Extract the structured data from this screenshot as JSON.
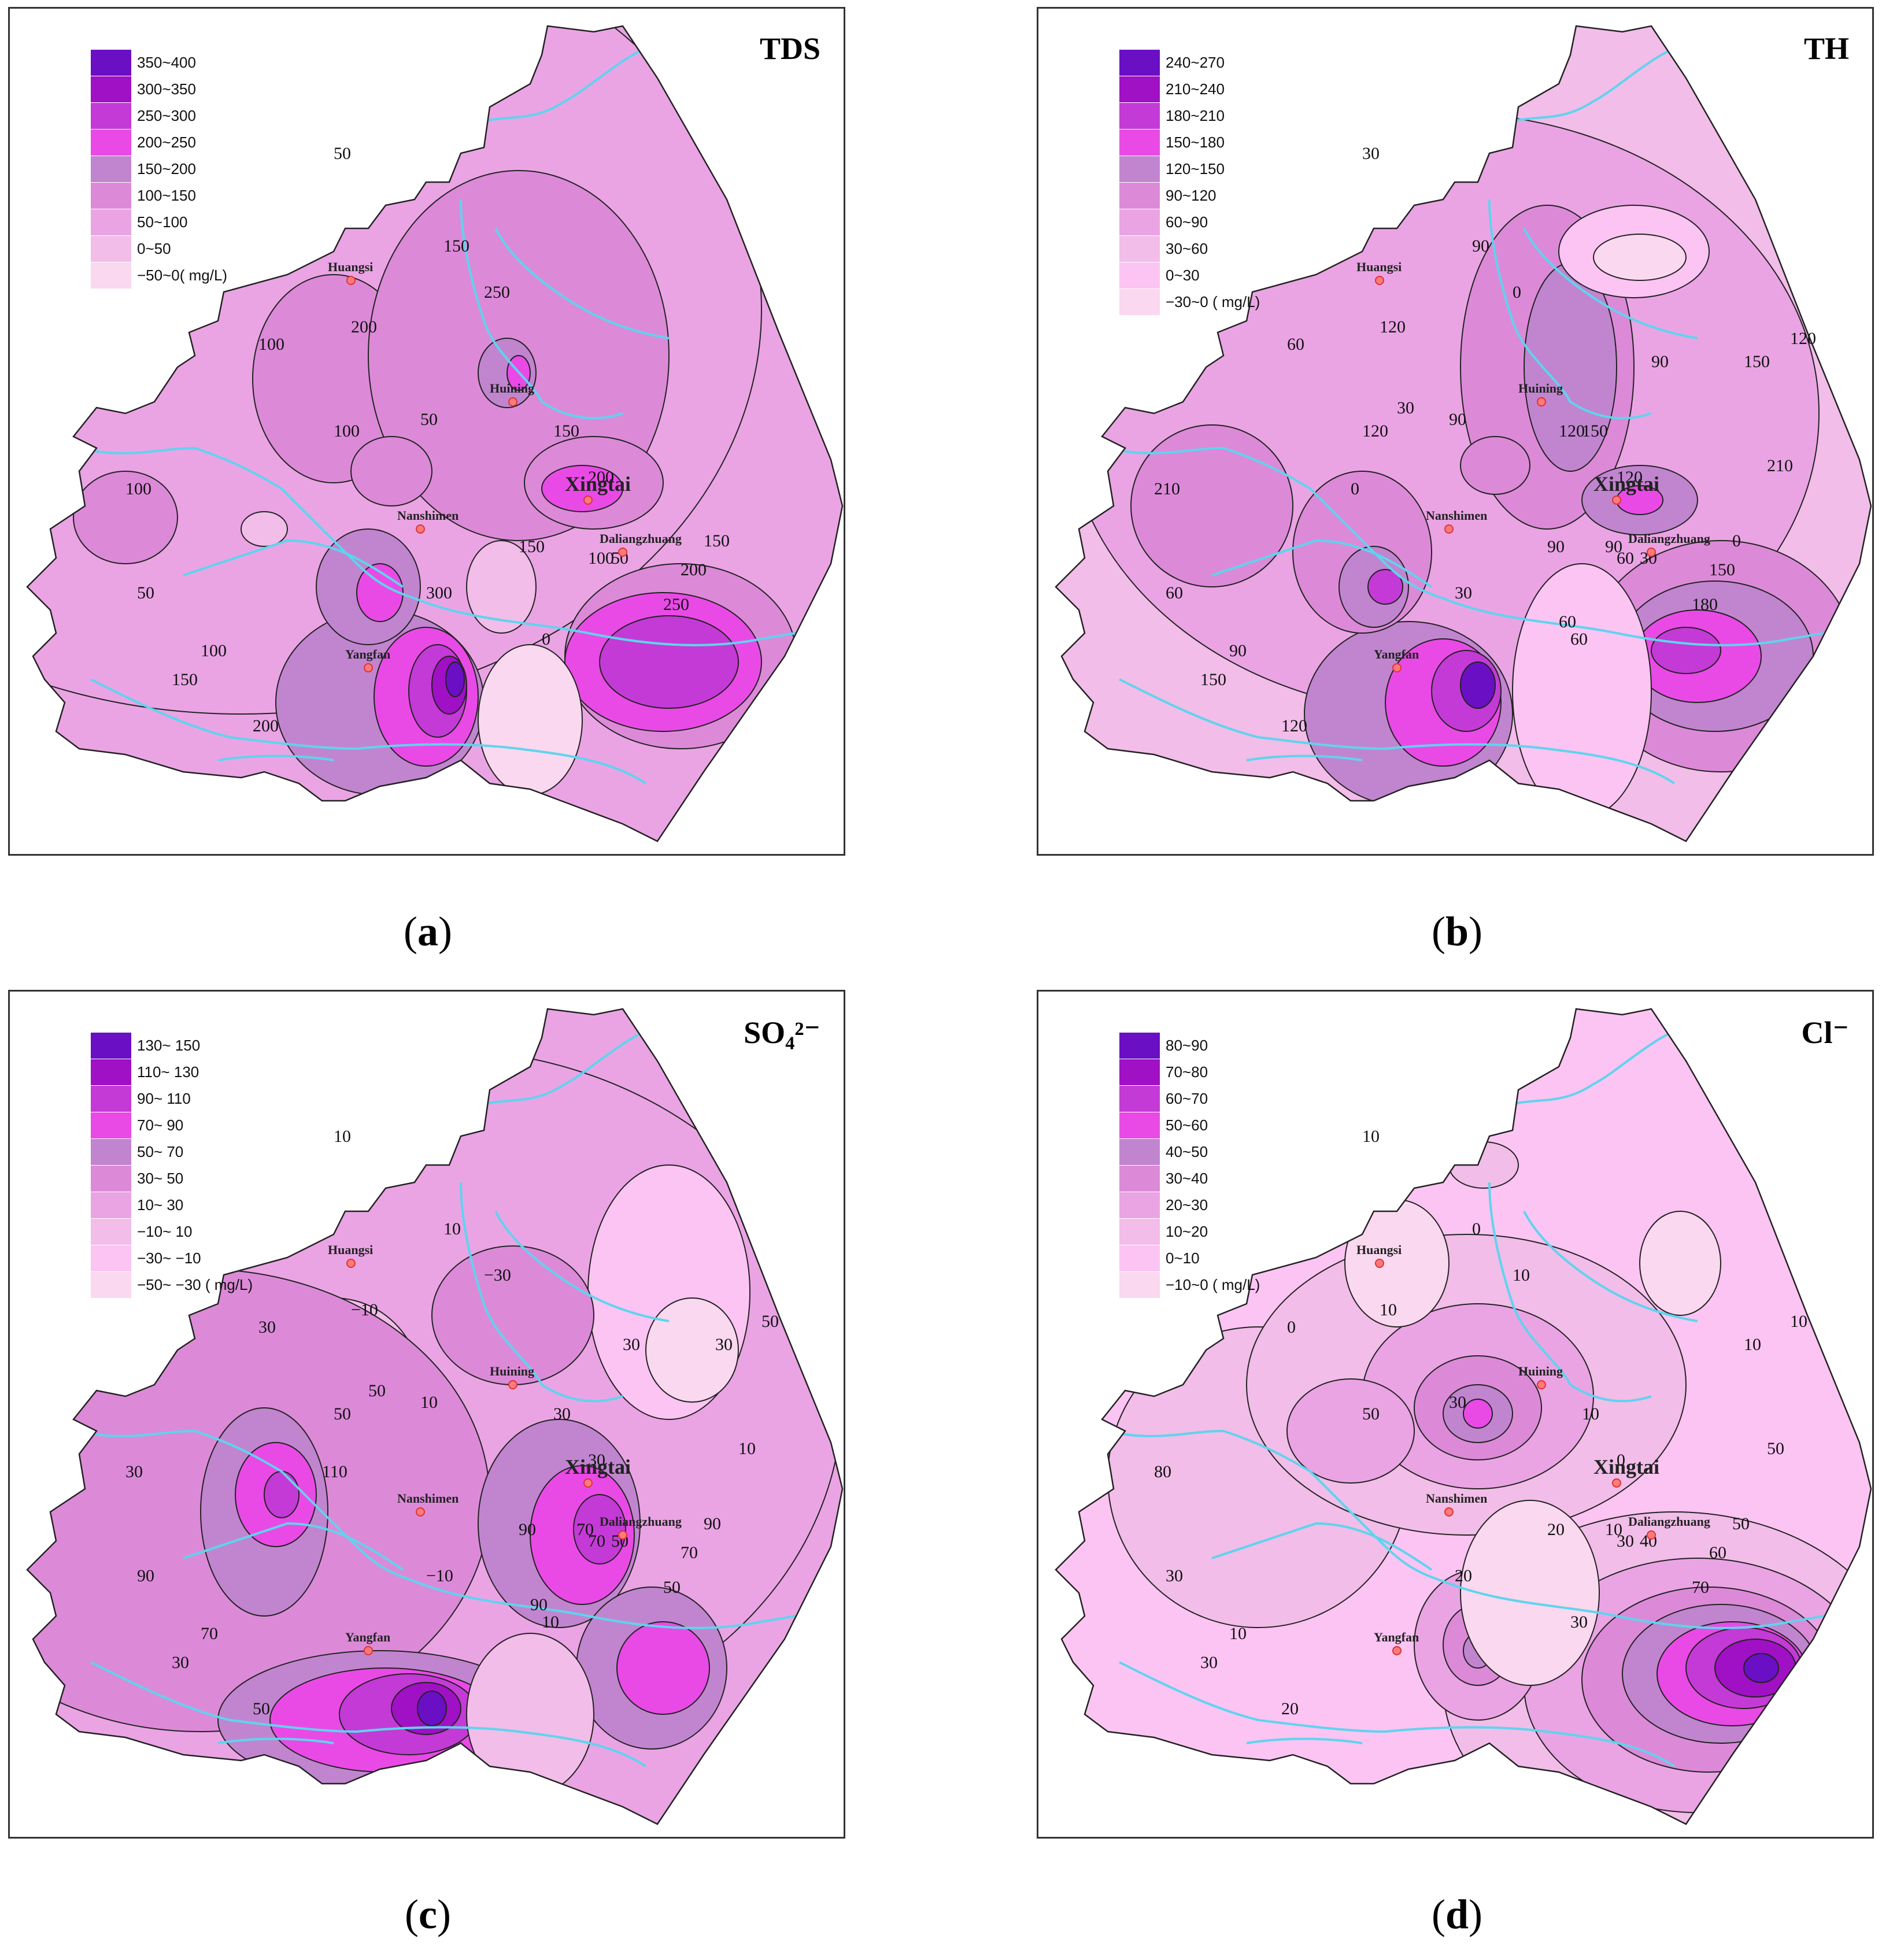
{
  "colors": {
    "river": "#5ed4ee",
    "contour": "#222222",
    "city_dot": "#ff7a7a"
  },
  "panels": [
    {
      "id": "a",
      "title": "TDS",
      "caption_letter": "a",
      "legend": [
        {
          "label": "350~400",
          "color": "#6a0fc4"
        },
        {
          "label": "300~350",
          "color": "#a010c4"
        },
        {
          "label": "250~300",
          "color": "#c43ad6"
        },
        {
          "label": "200~250",
          "color": "#e94ae6"
        },
        {
          "label": "150~200",
          "color": "#c185cf"
        },
        {
          "label": "100~150",
          "color": "#dc8ad8"
        },
        {
          "label": "50~100",
          "color": "#eaa4e4"
        },
        {
          "label": "0~50",
          "color": "#f2bde8"
        },
        {
          "label": "−50~0( mg/L)",
          "color": "#fad8ef"
        }
      ],
      "contour_labels": [
        "50",
        "100",
        "150",
        "200",
        "250",
        "300",
        "0",
        "50",
        "100",
        "150",
        "200",
        "150",
        "100",
        "50",
        "150",
        "200",
        "250",
        "100",
        "150",
        "200",
        "100",
        "50"
      ],
      "base_color": "#eaa4e4"
    },
    {
      "id": "b",
      "title": "TH",
      "caption_letter": "b",
      "legend": [
        {
          "label": "240~270",
          "color": "#6a0fc4"
        },
        {
          "label": "210~240",
          "color": "#a010c4"
        },
        {
          "label": "180~210",
          "color": "#c43ad6"
        },
        {
          "label": "150~180",
          "color": "#e94ae6"
        },
        {
          "label": "120~150",
          "color": "#c185cf"
        },
        {
          "label": "90~120",
          "color": "#dc8ad8"
        },
        {
          "label": "60~90",
          "color": "#eaa4e4"
        },
        {
          "label": "30~60",
          "color": "#f2bde8"
        },
        {
          "label": "0~30",
          "color": "#fcc4f3"
        },
        {
          "label": "−30~0 ( mg/L)",
          "color": "#fad8ef"
        }
      ],
      "contour_labels": [
        "30",
        "60",
        "90",
        "120",
        "0",
        "30",
        "60",
        "90",
        "120",
        "150",
        "120",
        "90",
        "60",
        "30",
        "0",
        "150",
        "180",
        "210",
        "150",
        "120",
        "90",
        "60",
        "210",
        "150",
        "120",
        "90",
        "60",
        "0",
        "30",
        "90",
        "120"
      ],
      "base_color": "#f2bde8"
    },
    {
      "id": "c",
      "title": "SO₄²⁻",
      "caption_letter": "c",
      "legend": [
        {
          "label": "130~ 150",
          "color": "#6a0fc4"
        },
        {
          "label": "110~ 130",
          "color": "#a010c4"
        },
        {
          "label": "90~ 110",
          "color": "#c43ad6"
        },
        {
          "label": "70~ 90",
          "color": "#e94ae6"
        },
        {
          "label": "50~ 70",
          "color": "#c185cf"
        },
        {
          "label": "30~ 50",
          "color": "#dc8ad8"
        },
        {
          "label": "10~ 30",
          "color": "#eaa4e4"
        },
        {
          "label": "−10~ 10",
          "color": "#f2bde8"
        },
        {
          "label": "−30~ −10",
          "color": "#fcc4f3"
        },
        {
          "label": "−50~ −30 ( mg/L)",
          "color": "#fad8ef"
        }
      ],
      "contour_labels": [
        "10",
        "30",
        "10",
        "−10",
        "−30",
        "−10",
        "10",
        "10",
        "50",
        "30",
        "30",
        "90",
        "70",
        "50",
        "90",
        "70",
        "50",
        "30",
        "30",
        "50",
        "70",
        "90",
        "10",
        "30",
        "50",
        "70",
        "90",
        "110",
        "50",
        "30"
      ],
      "base_color": "#eaa4e4"
    },
    {
      "id": "d",
      "title": "Cl⁻",
      "caption_letter": "d",
      "legend": [
        {
          "label": "80~90",
          "color": "#6a0fc4"
        },
        {
          "label": "70~80",
          "color": "#a010c4"
        },
        {
          "label": "60~70",
          "color": "#c43ad6"
        },
        {
          "label": "50~60",
          "color": "#e94ae6"
        },
        {
          "label": "40~50",
          "color": "#c185cf"
        },
        {
          "label": "30~40",
          "color": "#dc8ad8"
        },
        {
          "label": "20~30",
          "color": "#eaa4e4"
        },
        {
          "label": "10~20",
          "color": "#f2bde8"
        },
        {
          "label": "0~10",
          "color": "#fcc4f3"
        },
        {
          "label": "−10~0 ( mg/L)",
          "color": "#fad8ef"
        }
      ],
      "contour_labels": [
        "10",
        "0",
        "0",
        "10",
        "10",
        "20",
        "30",
        "30",
        "50",
        "10",
        "0",
        "20",
        "30",
        "40",
        "50",
        "60",
        "70",
        "80",
        "30",
        "20",
        "10",
        "30",
        "50",
        "10",
        "10",
        "10"
      ],
      "base_color": "#fcc4f3"
    }
  ],
  "cities": {
    "huangsi": "Huangsi",
    "huining": "Huining",
    "xingtai": "Xingtai",
    "nanshimen": "Nanshimen",
    "daliangzhuang": "Daliangzhuang",
    "yangfan": "Yangfan"
  }
}
